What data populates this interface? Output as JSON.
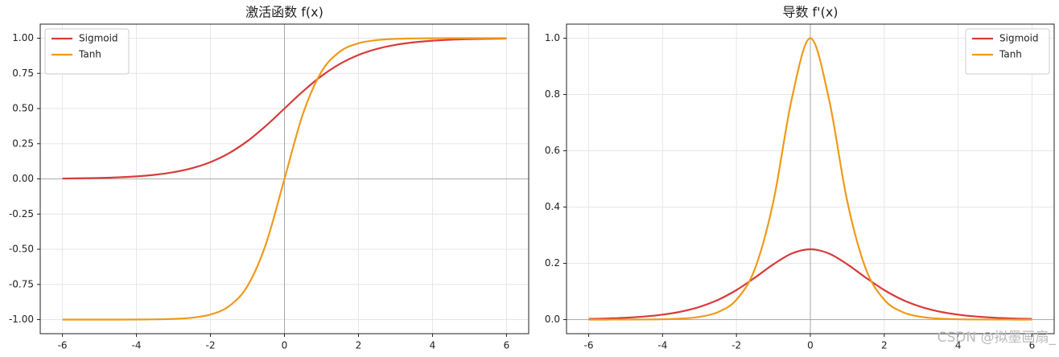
{
  "chart_data": [
    {
      "type": "line",
      "title": "激活函数 f(x)",
      "legend": "upper left",
      "grid": true,
      "x": [
        -6,
        -5.5,
        -5,
        -4.5,
        -4,
        -3.5,
        -3,
        -2.5,
        -2,
        -1.5,
        -1,
        -0.5,
        0,
        0.5,
        1,
        1.5,
        2,
        2.5,
        3,
        3.5,
        4,
        4.5,
        5,
        5.5,
        6
      ],
      "series": [
        {
          "name": "Sigmoid",
          "color": "#d93a3a",
          "values": [
            0.0025,
            0.0041,
            0.0067,
            0.011,
            0.018,
            0.0293,
            0.0474,
            0.0759,
            0.1192,
            0.1824,
            0.2689,
            0.3775,
            0.5,
            0.6225,
            0.7311,
            0.8176,
            0.8808,
            0.9241,
            0.9526,
            0.9707,
            0.982,
            0.989,
            0.9933,
            0.9959,
            0.9975
          ]
        },
        {
          "name": "Tanh",
          "color": "#f09a1a",
          "values": [
            -1,
            -1,
            -0.9999,
            -0.9998,
            -0.9993,
            -0.9982,
            -0.9951,
            -0.9866,
            -0.964,
            -0.9051,
            -0.7616,
            -0.4621,
            0,
            0.4621,
            0.7616,
            0.9051,
            0.964,
            0.9866,
            0.9951,
            0.9982,
            0.9993,
            0.9998,
            0.9999,
            1,
            1
          ]
        }
      ],
      "xlim": [
        -6.6,
        6.6
      ],
      "xticks": [
        -6,
        -4,
        -2,
        0,
        2,
        4,
        6
      ],
      "ylim": [
        -1.1,
        1.1
      ],
      "yticks": [
        {
          "value": -1,
          "label": "-1.00"
        },
        {
          "value": -0.75,
          "label": "-0.75"
        },
        {
          "value": -0.5,
          "label": "-0.50"
        },
        {
          "value": -0.25,
          "label": "-0.25"
        },
        {
          "value": 0,
          "label": "0.00"
        },
        {
          "value": 0.25,
          "label": "0.25"
        },
        {
          "value": 0.5,
          "label": "0.50"
        },
        {
          "value": 0.75,
          "label": "0.75"
        },
        {
          "value": 1,
          "label": "1.00"
        }
      ]
    },
    {
      "type": "line",
      "title": "导数 f'(x)",
      "legend": "upper right",
      "grid": true,
      "x": [
        -6,
        -5.5,
        -5,
        -4.5,
        -4,
        -3.5,
        -3,
        -2.5,
        -2,
        -1.5,
        -1,
        -0.5,
        0,
        0.5,
        1,
        1.5,
        2,
        2.5,
        3,
        3.5,
        4,
        4.5,
        5,
        5.5,
        6
      ],
      "series": [
        {
          "name": "Sigmoid",
          "color": "#d93a3a",
          "values": [
            0.0025,
            0.0041,
            0.0066,
            0.0109,
            0.0177,
            0.0284,
            0.0452,
            0.0701,
            0.105,
            0.1491,
            0.1966,
            0.235,
            0.25,
            0.235,
            0.1966,
            0.1491,
            0.105,
            0.0701,
            0.0452,
            0.0284,
            0.0177,
            0.0109,
            0.0066,
            0.0041,
            0.0025
          ]
        },
        {
          "name": "Tanh",
          "color": "#f09a1a",
          "values": [
            0,
            0.0001,
            0.0002,
            0.0005,
            0.0013,
            0.0036,
            0.0099,
            0.0266,
            0.0707,
            0.1808,
            0.42,
            0.7864,
            1,
            0.7864,
            0.42,
            0.1808,
            0.0707,
            0.0266,
            0.0099,
            0.0036,
            0.0013,
            0.0005,
            0.0002,
            0.0001,
            0
          ]
        }
      ],
      "xlim": [
        -6.6,
        6.6
      ],
      "xticks": [
        -6,
        -4,
        -2,
        0,
        2,
        4,
        6
      ],
      "ylim": [
        -0.05,
        1.05
      ],
      "yticks": [
        {
          "value": 0,
          "label": "0.0"
        },
        0.2,
        0.4,
        0.6,
        0.8,
        {
          "value": 1,
          "label": "1.0"
        }
      ]
    }
  ],
  "watermark": "CSDN @拟墨画扇_"
}
